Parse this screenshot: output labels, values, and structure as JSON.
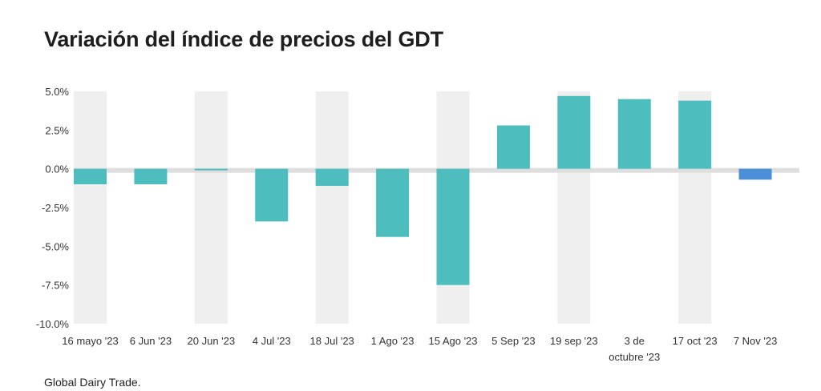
{
  "title": "Variación del índice de precios del GDT",
  "source": "Global Dairy Trade.",
  "chart_data": {
    "type": "bar",
    "title": "Variación del índice de precios del GDT",
    "categories": [
      [
        "16 mayo '23"
      ],
      [
        "6 Jun '23"
      ],
      [
        "20 Jun '23"
      ],
      [
        "4 Jul '23"
      ],
      [
        "18 Jul '23"
      ],
      [
        "1 Ago '23"
      ],
      [
        "15 Ago '23"
      ],
      [
        "5 Sep '23"
      ],
      [
        "19 sep '23"
      ],
      [
        "3 de",
        "octubre '23"
      ],
      [
        "17 oct '23"
      ],
      [
        "7 Nov '23"
      ]
    ],
    "values": [
      -1.0,
      -1.0,
      -0.1,
      -3.4,
      -1.1,
      -4.4,
      -7.5,
      2.8,
      4.7,
      4.5,
      4.4,
      -0.7
    ],
    "ylim": [
      -10,
      5
    ],
    "yticks": [
      "5.0%",
      "2.5%",
      "0.0%",
      "-2.5%",
      "-5.0%",
      "-7.5%",
      "-10.0%"
    ],
    "xlabel": "",
    "ylabel": "",
    "grid": false,
    "colors": {
      "bar": "#4dbdbe",
      "highlight": "#4a8fd8",
      "band": "#efefef",
      "zero_line": "#dedede"
    },
    "highlight_index": 11
  }
}
